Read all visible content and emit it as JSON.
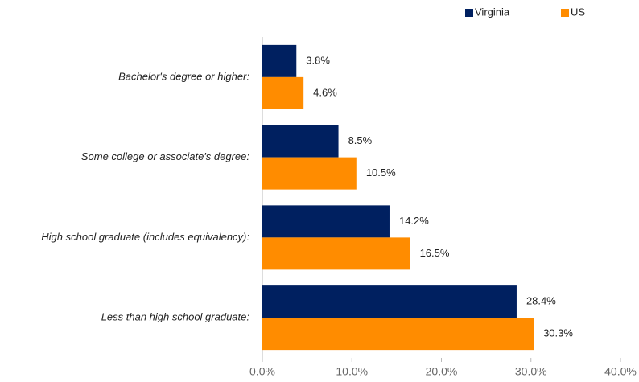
{
  "chart_data": {
    "type": "bar",
    "orientation": "horizontal",
    "categories": [
      "Bachelor's degree or higher:",
      "Some college or associate's degree:",
      "High school graduate (includes equivalency):",
      "Less than high school graduate:"
    ],
    "series": [
      {
        "name": "Virginia",
        "color": "#002060",
        "values": [
          3.8,
          8.5,
          14.2,
          28.4
        ],
        "value_labels": [
          "3.8%",
          "8.5%",
          "14.2%",
          "28.4%"
        ]
      },
      {
        "name": "US",
        "color": "#ff8c00",
        "values": [
          4.6,
          10.5,
          16.5,
          30.3
        ],
        "value_labels": [
          "4.6%",
          "10.5%",
          "16.5%",
          "30.3%"
        ]
      }
    ],
    "xlim": [
      0,
      40
    ],
    "xticks": [
      {
        "value": 0,
        "label": "0.0%"
      },
      {
        "value": 10,
        "label": "10.0%"
      },
      {
        "value": 20,
        "label": "20.0%"
      },
      {
        "value": 30,
        "label": "30.0%"
      },
      {
        "value": 40,
        "label": "40.0%"
      }
    ],
    "grid": false,
    "legend": "top-right"
  }
}
